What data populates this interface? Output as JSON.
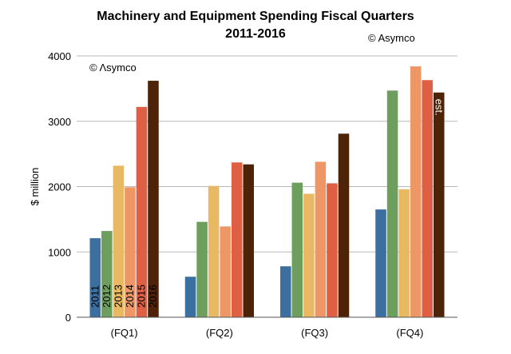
{
  "chart_data": {
    "type": "bar",
    "title": "Machinery and Equipment Spending Fiscal Quarters",
    "subtitle": "2011-2016",
    "copyright_top": "© Asymco",
    "copyright_inner": "© Λsymco",
    "ylabel": "$ million",
    "xlabel": "",
    "ylim": [
      0,
      4000
    ],
    "yticks": [
      0,
      1000,
      2000,
      3000,
      4000
    ],
    "grid": true,
    "categories": [
      "(FQ1)",
      "(FQ2)",
      "(FQ3)",
      "(FQ4)"
    ],
    "series": [
      {
        "name": "2011",
        "color": "#3A6FA0",
        "values": [
          1210,
          620,
          780,
          1650
        ]
      },
      {
        "name": "2012",
        "color": "#6E9E5E",
        "values": [
          1320,
          1460,
          2060,
          3470
        ]
      },
      {
        "name": "2013",
        "color": "#E8B962",
        "values": [
          2320,
          2010,
          1890,
          1960
        ]
      },
      {
        "name": "2014",
        "color": "#EE9666",
        "values": [
          1990,
          1390,
          2380,
          3840
        ]
      },
      {
        "name": "2015",
        "color": "#DF5F45",
        "values": [
          3220,
          2370,
          2050,
          3630
        ]
      },
      {
        "name": "2016",
        "color": "#4F2308",
        "values": [
          3620,
          2340,
          2810,
          3440
        ]
      }
    ],
    "estimate_label": "est."
  }
}
